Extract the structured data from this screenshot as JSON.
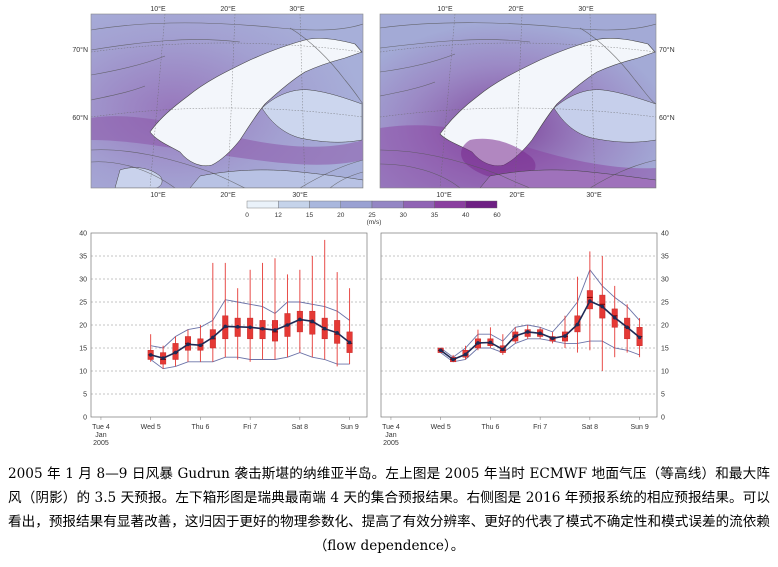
{
  "maps": {
    "top_lon_labels": [
      "10°E",
      "20°E",
      "30°E"
    ],
    "bottom_lon_labels": [
      "10°E",
      "20°E",
      "30°E"
    ],
    "lat_labels": [
      "70°N",
      "60°N"
    ]
  },
  "colorbar": {
    "ticks": [
      "0",
      "12",
      "15",
      "20",
      "25",
      "30",
      "35",
      "40",
      "60"
    ],
    "unit": "(m/s)",
    "colors": [
      "#eaf2fa",
      "#c5d3ea",
      "#a9b7dd",
      "#9aa1d2",
      "#9486c4",
      "#9064b4",
      "#8a3f9f",
      "#6e2083"
    ]
  },
  "chart_data": [
    {
      "type": "box",
      "yticks": [
        0,
        5,
        10,
        15,
        20,
        25,
        30,
        35,
        40
      ],
      "ylim": [
        0,
        40
      ],
      "grid": "dashed horizontal",
      "xlabels": [
        {
          "text": "Tue 4",
          "sub": [
            "Jan",
            "2005"
          ],
          "color": "#333333"
        },
        {
          "text": "Wed 5",
          "color": "#333333"
        },
        {
          "text": "Thu 6",
          "color": "#333333"
        },
        {
          "text": "Fri 7",
          "color": "#333333"
        },
        {
          "text": "Sat 8",
          "color": "#333333"
        },
        {
          "text": "Sun 9",
          "color": "#c62828"
        }
      ],
      "x_days": [
        1.0,
        1.25,
        1.5,
        1.75,
        2.0,
        2.25,
        2.5,
        2.75,
        3.0,
        3.25,
        3.5,
        3.75,
        4.0,
        4.25,
        4.5,
        4.75,
        5.0
      ],
      "median": [
        13.5,
        12.5,
        14,
        16,
        15.5,
        17,
        19.5,
        19.5,
        19.5,
        19,
        18.5,
        20,
        21,
        20.5,
        19,
        18,
        16
      ],
      "q1": [
        12.5,
        11.5,
        12.5,
        14.5,
        14.5,
        15,
        17,
        17.5,
        17,
        17,
        16.5,
        17.5,
        18.5,
        18,
        17,
        16,
        14
      ],
      "q3": [
        14.5,
        14,
        16,
        17.5,
        17,
        19,
        22,
        21.5,
        21.5,
        21,
        21,
        22.5,
        23,
        23,
        21.5,
        21,
        18.5
      ],
      "min": [
        12,
        10.5,
        11,
        12,
        12,
        12,
        13,
        12.5,
        12,
        12.5,
        12.5,
        13,
        14,
        13,
        12.5,
        11,
        11.5
      ],
      "max": [
        18,
        15.5,
        17.5,
        19,
        20,
        33.5,
        33.5,
        28,
        32,
        33.5,
        34.5,
        31,
        32,
        35,
        38.5,
        31.5,
        28
      ],
      "envelope_low": [
        12.5,
        10.5,
        11,
        12,
        12,
        12,
        13,
        13,
        12.5,
        12.5,
        12.5,
        13,
        14,
        13,
        12.5,
        11.5,
        11.5
      ],
      "envelope_high": [
        15.5,
        15,
        17.5,
        19,
        19.5,
        21,
        25.5,
        25,
        24.5,
        24,
        22.5,
        25,
        25,
        24.5,
        24,
        23,
        21
      ],
      "ensemble_mean": [
        13.5,
        12.8,
        14,
        15.8,
        15.6,
        17.3,
        19.7,
        19.6,
        19.5,
        19.2,
        18.9,
        20,
        21.2,
        20.8,
        19.2,
        18.3,
        16.2
      ]
    },
    {
      "type": "box",
      "yticks": [
        0,
        5,
        10,
        15,
        20,
        25,
        30,
        35,
        40
      ],
      "ylim": [
        0,
        40
      ],
      "grid": "dashed horizontal",
      "xlabels": [
        {
          "text": "Tue 4",
          "sub": [
            "Jan",
            "2005"
          ],
          "color": "#333333"
        },
        {
          "text": "Wed 5",
          "color": "#333333"
        },
        {
          "text": "Thu 6",
          "color": "#333333"
        },
        {
          "text": "Fri 7",
          "color": "#333333"
        },
        {
          "text": "Sat 8",
          "color": "#333333"
        },
        {
          "text": "Sun 9",
          "color": "#c62828"
        }
      ],
      "x_days": [
        1.0,
        1.25,
        1.5,
        1.75,
        2.0,
        2.25,
        2.5,
        2.75,
        3.0,
        3.25,
        3.5,
        3.75,
        4.0,
        4.25,
        4.5,
        4.75,
        5.0
      ],
      "median": [
        14.5,
        12.5,
        13.5,
        16,
        16,
        14.5,
        17.5,
        18.5,
        18,
        17,
        17.5,
        20,
        26,
        24.5,
        22,
        19.5,
        17.5
      ],
      "q1": [
        14,
        12,
        13,
        15,
        15.5,
        14,
        16.5,
        17.5,
        17.5,
        16.5,
        16.5,
        18.5,
        23.5,
        21.5,
        19.5,
        17,
        15.5
      ],
      "q3": [
        15,
        13,
        14.5,
        17,
        17,
        15.5,
        18.5,
        19,
        19,
        17.5,
        18.5,
        22,
        27.5,
        26.5,
        23.5,
        21.5,
        19.5
      ],
      "min": [
        14,
        12,
        12.5,
        14.5,
        15,
        13.5,
        16,
        17,
        17,
        16,
        15,
        14,
        14.5,
        10,
        13,
        14,
        13
      ],
      "max": [
        15,
        13.5,
        15.5,
        19,
        19.5,
        18,
        19.5,
        20,
        19.5,
        18.5,
        22,
        30.5,
        36,
        35,
        28.5,
        24.5,
        21.5
      ],
      "envelope_low": [
        14,
        12,
        12.5,
        15,
        15,
        14,
        16,
        17,
        17,
        16.5,
        16,
        16,
        16.5,
        16.5,
        15,
        14.5,
        13.5
      ],
      "envelope_high": [
        15,
        13,
        15,
        18,
        18,
        16.5,
        19.5,
        20,
        19.5,
        18.5,
        21.5,
        25,
        32,
        28.5,
        26,
        24,
        21
      ],
      "ensemble_mean": [
        14.5,
        12.5,
        13.6,
        16.1,
        16.2,
        14.7,
        17.6,
        18.5,
        18.2,
        17.1,
        17.6,
        20.1,
        25.2,
        24,
        21.6,
        19.5,
        17.3
      ]
    }
  ],
  "caption": {
    "text": "2005 年 1 月 8—9 日风暴 Gudrun 袭击斯堪的纳维亚半岛。左上图是 2005 年当时 ECMWF 地面气压（等高线）和最大阵风（阴影）的 3.5 天预报。左下箱形图是瑞典最南端 4 天的集合预报结果。右侧图是 2016 年预报系统的相应预报结果。可以看出，预报结果有显著改善，这归因于更好的物理参数化、提高了有效分辨率、更好的代表了模式不确定性和模式误差的流依赖（flow dependence）。"
  }
}
